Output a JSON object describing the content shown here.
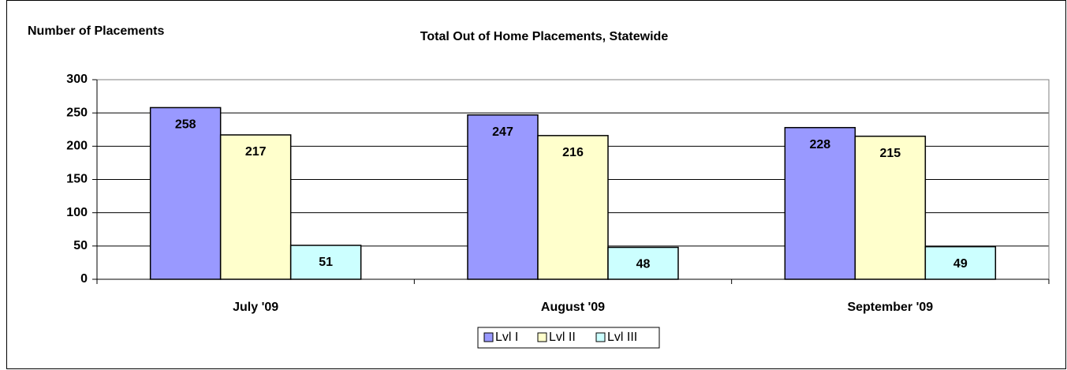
{
  "chart_data": {
    "type": "bar",
    "title": "Total Out of Home Placements, Statewide",
    "y_label": "Number of Placements",
    "categories": [
      "July '09",
      "August '09",
      "September '09"
    ],
    "series": [
      {
        "name": "Lvl I",
        "color": "#9999ff",
        "values": [
          258,
          247,
          228
        ]
      },
      {
        "name": "Lvl II",
        "color": "#ffffcc",
        "values": [
          217,
          216,
          215
        ]
      },
      {
        "name": "Lvl III",
        "color": "#ccffff",
        "values": [
          51,
          48,
          49
        ]
      }
    ],
    "ylim": [
      0,
      300
    ],
    "yticks": [
      0,
      50,
      100,
      150,
      200,
      250,
      300
    ],
    "grid": true,
    "legend": "bottom"
  }
}
